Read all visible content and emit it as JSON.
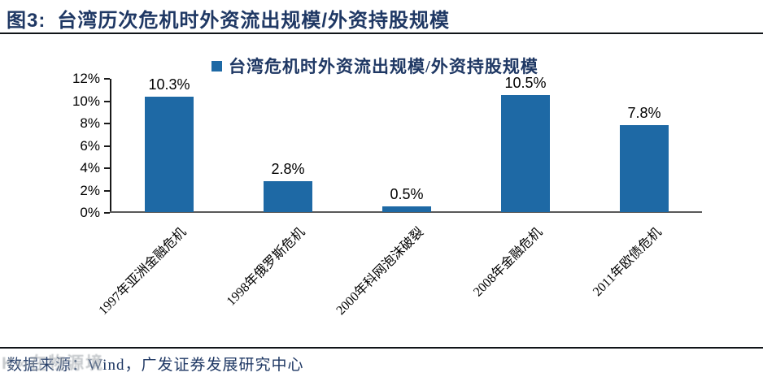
{
  "header": {
    "figure_label": "图3:",
    "title": "台湾历次危机时外资流出规模/外资持股规模"
  },
  "legend": {
    "label": "台湾危机时外资流出规模/外资持股规模"
  },
  "chart_data": {
    "type": "bar",
    "title": "台湾危机时外资流出规模/外资持股规模",
    "categories": [
      "1997年亚洲金融危机",
      "1998年俄罗斯危机",
      "2000年科网泡沫破裂",
      "2008年金融危机",
      "2011年欧债危机"
    ],
    "values": [
      10.3,
      2.8,
      0.5,
      10.5,
      7.8
    ],
    "value_labels": [
      "10.3%",
      "2.8%",
      "0.5%",
      "10.5%",
      "7.8%"
    ],
    "xlabel": "",
    "ylabel": "",
    "ylim": [
      0,
      12
    ],
    "ytick_step": 2,
    "ytick_labels": [
      "0%",
      "2%",
      "4%",
      "6%",
      "8%",
      "10%",
      "12%"
    ],
    "grid": false,
    "legend_position": "top",
    "bar_color": "#1E69A5"
  },
  "footer": {
    "source": "数据来源：Wind，广发证券发展研究中心"
  },
  "watermark": {
    "text": "K∞在物源境"
  },
  "colors": {
    "title_navy": "#1F3864",
    "bar_blue": "#1E69A5",
    "baseline_gray": "#595959",
    "rule_dark": "#101418"
  }
}
